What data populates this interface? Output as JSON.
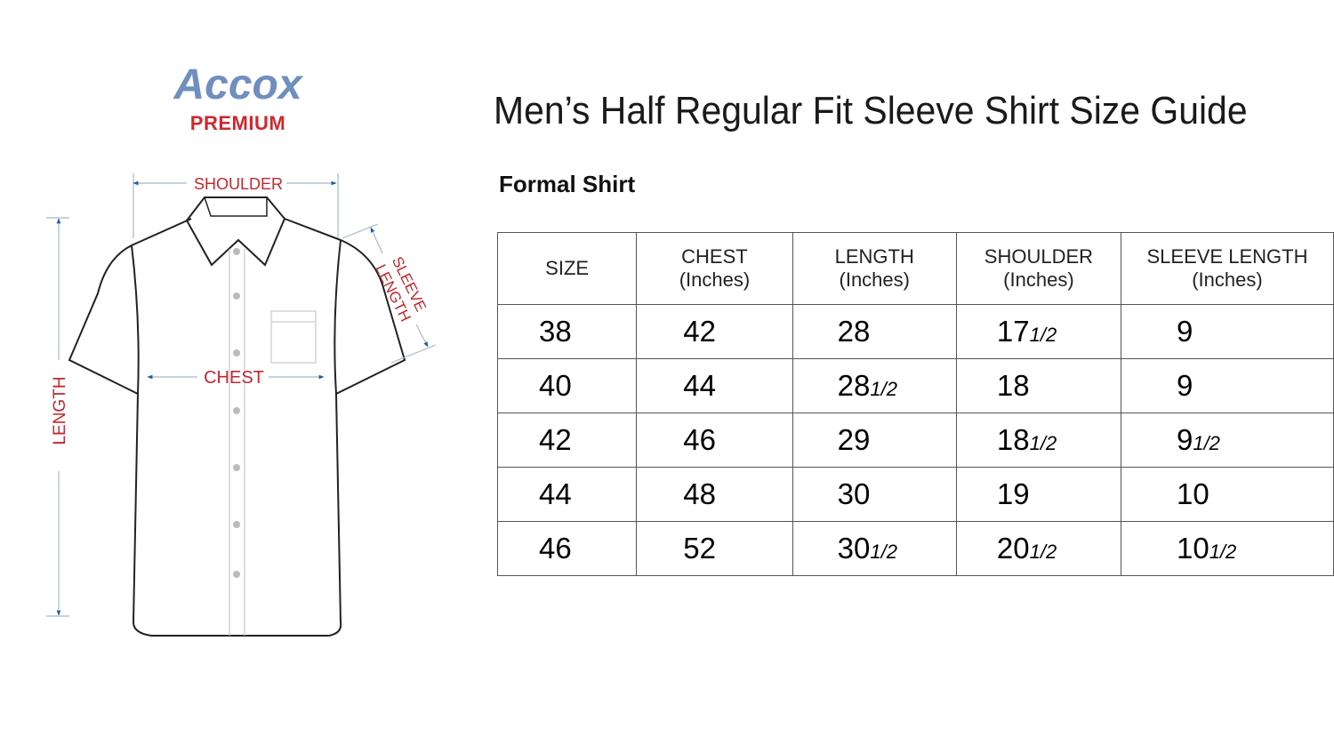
{
  "brand": {
    "name": "Accox",
    "tagline": "PREMIUM"
  },
  "title": "Men’s Half Regular Fit Sleeve Shirt Size Guide",
  "subtitle": "Formal Shirt",
  "diagram": {
    "labels": {
      "shoulder": "SHOULDER",
      "sleeve_line1": "SLEEVE",
      "sleeve_line2": "LENGTH",
      "chest": "CHEST",
      "length": "LENGTH"
    },
    "colors": {
      "label": "#c0282e",
      "arrow": "#1f5f9a"
    }
  },
  "table": {
    "headers": [
      {
        "main": "SIZE",
        "unit": ""
      },
      {
        "main": "CHEST",
        "unit": "(Inches)"
      },
      {
        "main": "LENGTH",
        "unit": "(Inches)"
      },
      {
        "main": "SHOULDER",
        "unit": "(Inches)"
      },
      {
        "main": "SLEEVE LENGTH",
        "unit": "(Inches)"
      }
    ],
    "rows": [
      [
        {
          "whole": "38",
          "frac": ""
        },
        {
          "whole": "42",
          "frac": ""
        },
        {
          "whole": "28",
          "frac": ""
        },
        {
          "whole": "17",
          "frac": "1/2"
        },
        {
          "whole": "9",
          "frac": ""
        }
      ],
      [
        {
          "whole": "40",
          "frac": ""
        },
        {
          "whole": "44",
          "frac": ""
        },
        {
          "whole": "28",
          "frac": "1/2"
        },
        {
          "whole": "18",
          "frac": ""
        },
        {
          "whole": "9",
          "frac": ""
        }
      ],
      [
        {
          "whole": "42",
          "frac": ""
        },
        {
          "whole": "46",
          "frac": ""
        },
        {
          "whole": "29",
          "frac": ""
        },
        {
          "whole": "18",
          "frac": "1/2"
        },
        {
          "whole": "9",
          "frac": "1/2"
        }
      ],
      [
        {
          "whole": "44",
          "frac": ""
        },
        {
          "whole": "48",
          "frac": ""
        },
        {
          "whole": "30",
          "frac": ""
        },
        {
          "whole": "19",
          "frac": ""
        },
        {
          "whole": "10",
          "frac": ""
        }
      ],
      [
        {
          "whole": "46",
          "frac": ""
        },
        {
          "whole": "52",
          "frac": ""
        },
        {
          "whole": "30",
          "frac": "1/2"
        },
        {
          "whole": "20",
          "frac": "1/2"
        },
        {
          "whole": "10",
          "frac": "1/2"
        }
      ]
    ]
  }
}
